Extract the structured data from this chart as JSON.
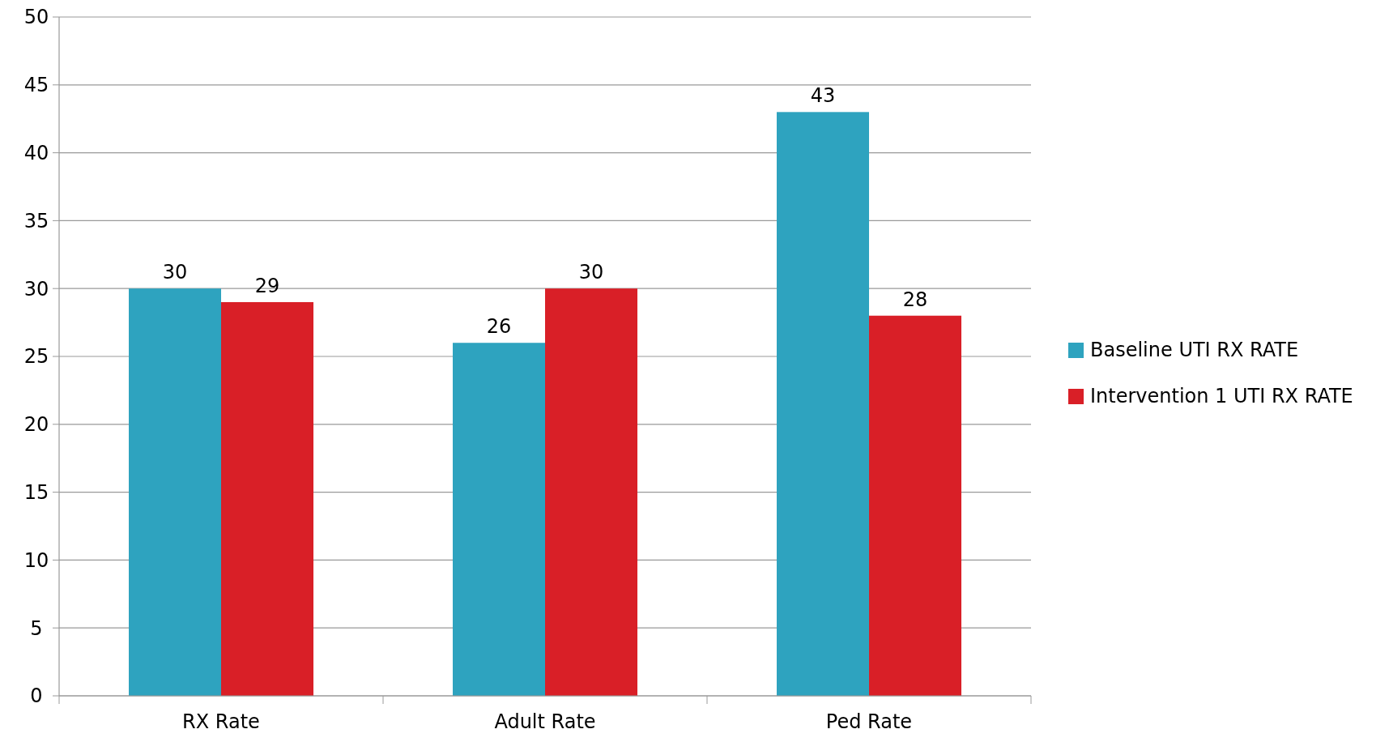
{
  "chart_data": {
    "type": "bar",
    "categories": [
      "RX Rate",
      "Adult Rate",
      "Ped Rate"
    ],
    "series": [
      {
        "name": "Baseline UTI RX RATE",
        "color": "#2ea3bf",
        "values": [
          30,
          26,
          43
        ]
      },
      {
        "name": "Intervention 1 UTI RX RATE",
        "color": "#d91f27",
        "values": [
          29,
          30,
          28
        ]
      }
    ],
    "ylim": [
      0,
      50
    ],
    "yticks": [
      0,
      5,
      10,
      15,
      20,
      25,
      30,
      35,
      40,
      45,
      50
    ],
    "grid": "y",
    "legend": "right",
    "data_labels": true
  }
}
